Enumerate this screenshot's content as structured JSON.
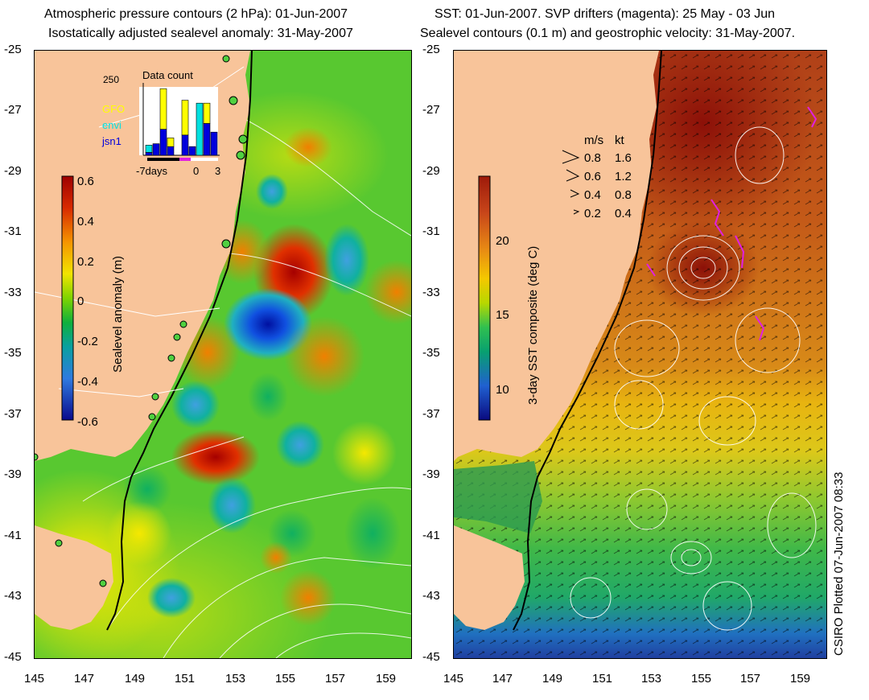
{
  "left_panel": {
    "title_line1": "Atmospheric pressure contours (2 hPa): 01-Jun-2007",
    "title_line2": "Isostatically adjusted sealevel anomaly: 31-May-2007",
    "colorbar": {
      "label": "Sealevel anomaly (m)",
      "ticks": [
        "0.6",
        "0.4",
        "0.2",
        "0",
        "-0.2",
        "-0.4",
        "-0.6"
      ],
      "colors": [
        "#9e0000",
        "#d82a00",
        "#f59400",
        "#f2e400",
        "#7fd400",
        "#0fb03c",
        "#0aa0a0",
        "#2f7ae0",
        "#0a0a8c"
      ]
    },
    "data_count": {
      "title": "Data count",
      "max_label": "250",
      "legend": [
        {
          "name": "GFO",
          "color": "#ffff00"
        },
        {
          "name": "envi",
          "color": "#00e0e0"
        },
        {
          "name": "jsn1",
          "color": "#0000dd"
        }
      ],
      "x_label_days": "-7days",
      "x_label_zero": "0",
      "x_label_three": "3",
      "bars": [
        {
          "jsn1": 10,
          "envi": 25,
          "GFO": 0
        },
        {
          "jsn1": 40,
          "envi": 0,
          "GFO": 0
        },
        {
          "jsn1": 90,
          "envi": 0,
          "GFO": 140
        },
        {
          "jsn1": 30,
          "envi": 0,
          "GFO": 30
        },
        {
          "jsn1": 0,
          "envi": 0,
          "GFO": 0
        },
        {
          "jsn1": 70,
          "envi": 0,
          "GFO": 120
        },
        {
          "jsn1": 30,
          "envi": 0,
          "GFO": 0
        },
        {
          "jsn1": 0,
          "envi": 180,
          "GFO": 0
        },
        {
          "jsn1": 110,
          "envi": 0,
          "GFO": 70
        },
        {
          "jsn1": 80,
          "envi": 0,
          "GFO": 0
        }
      ]
    }
  },
  "right_panel": {
    "title_line1": "SST: 01-Jun-2007. SVP drifters (magenta): 25 May - 03 Jun",
    "title_line2": "Sealevel contours (0.1 m) and geostrophic velocity: 31-May-2007.",
    "colorbar": {
      "label": "3-day SST composite (deg C)",
      "ticks": [
        "20",
        "15",
        "10"
      ],
      "colors": [
        "#9e1a0a",
        "#c8461a",
        "#e88a14",
        "#f4c800",
        "#b8d800",
        "#30c050",
        "#08a070",
        "#2060d0",
        "#0a0a80"
      ]
    },
    "velocity_legend": {
      "header_ms": "m/s",
      "header_kt": "kt",
      "rows": [
        {
          "ms": "0.8",
          "kt": "1.6"
        },
        {
          "ms": "0.6",
          "kt": "1.2"
        },
        {
          "ms": "0.4",
          "kt": "0.8"
        },
        {
          "ms": "0.2",
          "kt": "0.4"
        }
      ]
    }
  },
  "axes": {
    "lat_labels": [
      "-25",
      "-27",
      "-29",
      "-31",
      "-33",
      "-35",
      "-37",
      "-39",
      "-41",
      "-43",
      "-45"
    ],
    "lon_labels": [
      "145",
      "147",
      "149",
      "151",
      "153",
      "155",
      "157",
      "159"
    ]
  },
  "stamp": "CSIRO Plotted 07-Jun-2007 08:33",
  "colors": {
    "land": "#f8c49a",
    "drifter": "#e020e0",
    "tide_gauge": "#50d040"
  }
}
